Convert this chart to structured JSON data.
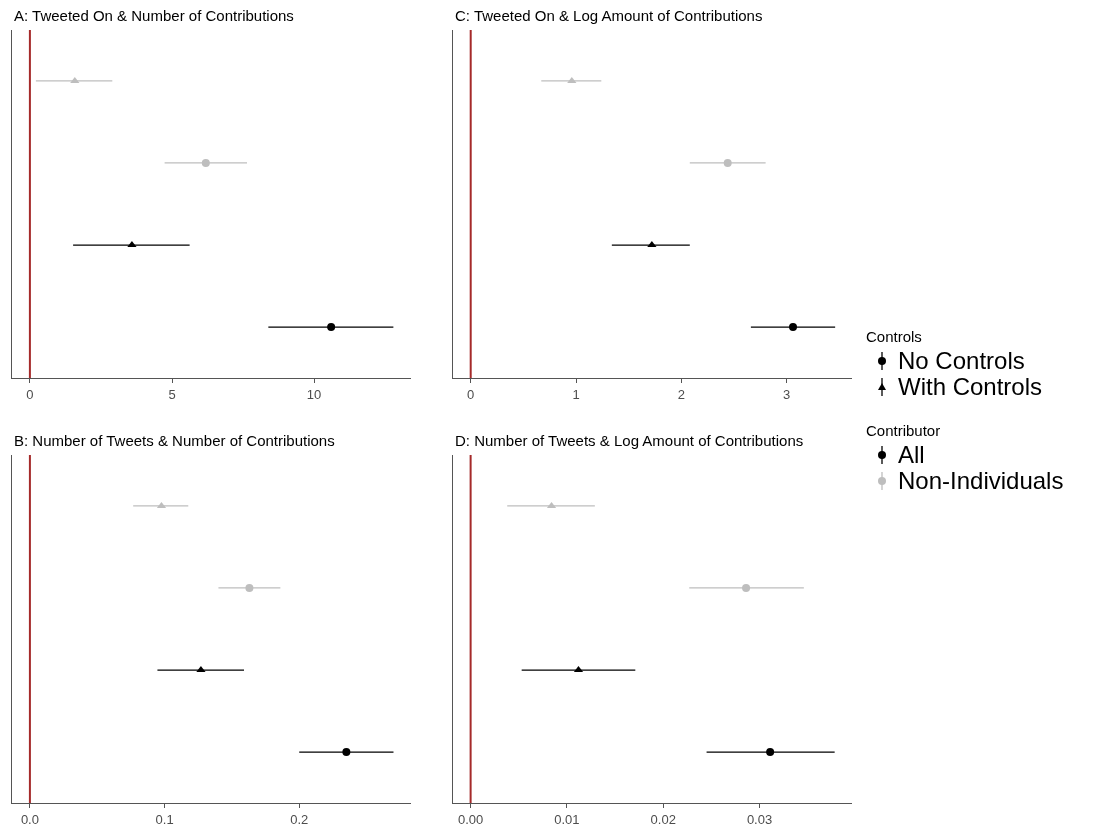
{
  "chart_data": [
    {
      "type": "scatter",
      "orientation": "horizontal",
      "title": "A: Tweeted On & Number of Contributions",
      "categories": [
        null,
        null,
        null,
        null
      ],
      "xlim": [
        -0.63,
        13.41
      ],
      "xticks": [
        0,
        5,
        10
      ],
      "grid": false,
      "tick_labels": "x",
      "ref_lines": [
        {
          "axis": "x",
          "value": 0,
          "color": "#a52a2a"
        }
      ],
      "series": [
        {
          "color": "#bebebe",
          "marker": "triangle",
          "values": [
            1.58,
            null,
            null,
            null
          ],
          "errors": [
            [
              0.21,
              2.9
            ],
            null,
            null,
            null
          ]
        },
        {
          "color": "#bebebe",
          "marker": "circle",
          "values": [
            null,
            6.19,
            null,
            null
          ],
          "errors": [
            null,
            [
              4.74,
              7.64
            ],
            null,
            null
          ]
        },
        {
          "color": "#000000",
          "marker": "triangle",
          "values": [
            null,
            null,
            3.59,
            null
          ],
          "errors": [
            null,
            null,
            [
              1.52,
              5.62
            ],
            null
          ]
        },
        {
          "color": "#000000",
          "marker": "circle",
          "values": [
            null,
            null,
            null,
            10.6
          ],
          "errors": [
            null,
            null,
            null,
            [
              8.39,
              12.79
            ]
          ]
        }
      ]
    },
    {
      "type": "scatter",
      "orientation": "horizontal",
      "title": "C: Tweeted On & Log Amount of Contributions",
      "categories": [
        null,
        null,
        null,
        null
      ],
      "xlim": [
        -0.168,
        3.62
      ],
      "xticks": [
        0,
        1,
        2,
        3
      ],
      "grid": false,
      "tick_labels": "x",
      "ref_lines": [
        {
          "axis": "x",
          "value": 0,
          "color": "#a52a2a"
        }
      ],
      "series": [
        {
          "color": "#bebebe",
          "marker": "triangle",
          "values": [
            0.96,
            null,
            null,
            null
          ],
          "errors": [
            [
              0.67,
              1.24
            ],
            null,
            null,
            null
          ]
        },
        {
          "color": "#bebebe",
          "marker": "circle",
          "values": [
            null,
            2.44,
            null,
            null
          ],
          "errors": [
            null,
            [
              2.08,
              2.8
            ],
            null,
            null
          ]
        },
        {
          "color": "#000000",
          "marker": "triangle",
          "values": [
            null,
            null,
            1.72,
            null
          ],
          "errors": [
            null,
            null,
            [
              1.34,
              2.08
            ],
            null
          ]
        },
        {
          "color": "#000000",
          "marker": "circle",
          "values": [
            null,
            null,
            null,
            3.06
          ],
          "errors": [
            null,
            null,
            null,
            [
              2.66,
              3.46
            ]
          ]
        }
      ]
    },
    {
      "type": "scatter",
      "orientation": "horizontal",
      "title": "B: Number of Tweets & Number of Contributions",
      "categories": [
        null,
        null,
        null,
        null
      ],
      "xlim": [
        -0.0133,
        0.283
      ],
      "xticks": [
        {
          "value": 0,
          "label": "0.0"
        },
        0.1,
        0.2
      ],
      "grid": false,
      "tick_labels": "x",
      "ref_lines": [
        {
          "axis": "x",
          "value": 0,
          "color": "#a52a2a"
        }
      ],
      "series": [
        {
          "color": "#bebebe",
          "marker": "triangle",
          "values": [
            0.0977,
            null,
            null,
            null
          ],
          "errors": [
            [
              0.0767,
              0.1176
            ],
            null,
            null,
            null
          ]
        },
        {
          "color": "#bebebe",
          "marker": "circle",
          "values": [
            null,
            0.163,
            null,
            null
          ],
          "errors": [
            null,
            [
              0.14,
              0.186
            ],
            null,
            null
          ]
        },
        {
          "color": "#000000",
          "marker": "triangle",
          "values": [
            null,
            null,
            0.127,
            null
          ],
          "errors": [
            null,
            null,
            [
              0.0947,
              0.159
            ],
            null
          ]
        },
        {
          "color": "#000000",
          "marker": "circle",
          "values": [
            null,
            null,
            null,
            0.235
          ],
          "errors": [
            null,
            null,
            null,
            [
              0.2,
              0.27
            ]
          ]
        }
      ]
    },
    {
      "type": "scatter",
      "orientation": "horizontal",
      "title": "D: Number of Tweets & Log Amount of Contributions",
      "categories": [
        null,
        null,
        null,
        null
      ],
      "xlim": [
        -0.00183,
        0.0396
      ],
      "xticks": [
        {
          "value": 0,
          "label": "0.00"
        },
        0.01,
        0.02,
        0.03
      ],
      "grid": false,
      "tick_labels": "x",
      "ref_lines": [
        {
          "axis": "x",
          "value": 0,
          "color": "#a52a2a"
        }
      ],
      "series": [
        {
          "color": "#bebebe",
          "marker": "triangle",
          "values": [
            0.0084,
            null,
            null,
            null
          ],
          "errors": [
            [
              0.0038,
              0.0129
            ],
            null,
            null,
            null
          ]
        },
        {
          "color": "#bebebe",
          "marker": "circle",
          "values": [
            null,
            0.0286,
            null,
            null
          ],
          "errors": [
            null,
            [
              0.0227,
              0.0346
            ],
            null,
            null
          ]
        },
        {
          "color": "#000000",
          "marker": "triangle",
          "values": [
            null,
            null,
            0.0112,
            null
          ],
          "errors": [
            null,
            null,
            [
              0.0053,
              0.0171
            ],
            null
          ]
        },
        {
          "color": "#000000",
          "marker": "circle",
          "values": [
            null,
            null,
            null,
            0.0311
          ],
          "errors": [
            null,
            null,
            null,
            [
              0.0245,
              0.0378
            ]
          ]
        }
      ]
    },
    {
      "type": "other",
      "annotations": [
        "Controls",
        "No Controls",
        "With Controls",
        "Contributor",
        "All",
        "Non-Individuals"
      ]
    }
  ]
}
